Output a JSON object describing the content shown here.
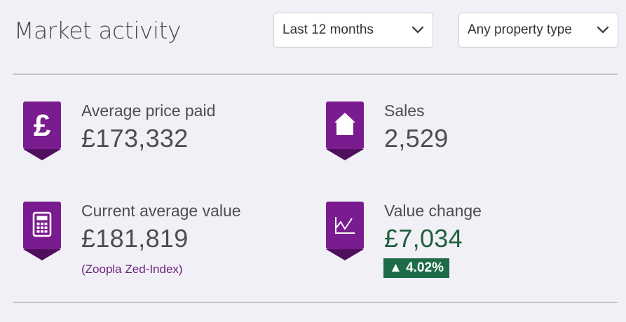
{
  "header": {
    "title": "Market activity"
  },
  "filters": {
    "period": "Last 12 months",
    "property_type": "Any property type"
  },
  "stats": {
    "avg_price_paid": {
      "label": "Average price paid",
      "value": "£173,332",
      "icon": "pound-sign-icon"
    },
    "sales": {
      "label": "Sales",
      "value": "2,529",
      "icon": "house-icon"
    },
    "current_avg_value": {
      "label": "Current average value",
      "value": "£181,819",
      "note": "(Zoopla Zed-Index)",
      "icon": "calculator-icon"
    },
    "value_change": {
      "label": "Value change",
      "value": "£7,034",
      "change": "▲ 4.02%",
      "icon": "line-chart-icon"
    }
  },
  "colors": {
    "brand_purple": "#7a1b8f",
    "brand_purple_dark": "#4f0f5e",
    "positive_green": "#1e6b47",
    "background": "#f1f0f6"
  }
}
